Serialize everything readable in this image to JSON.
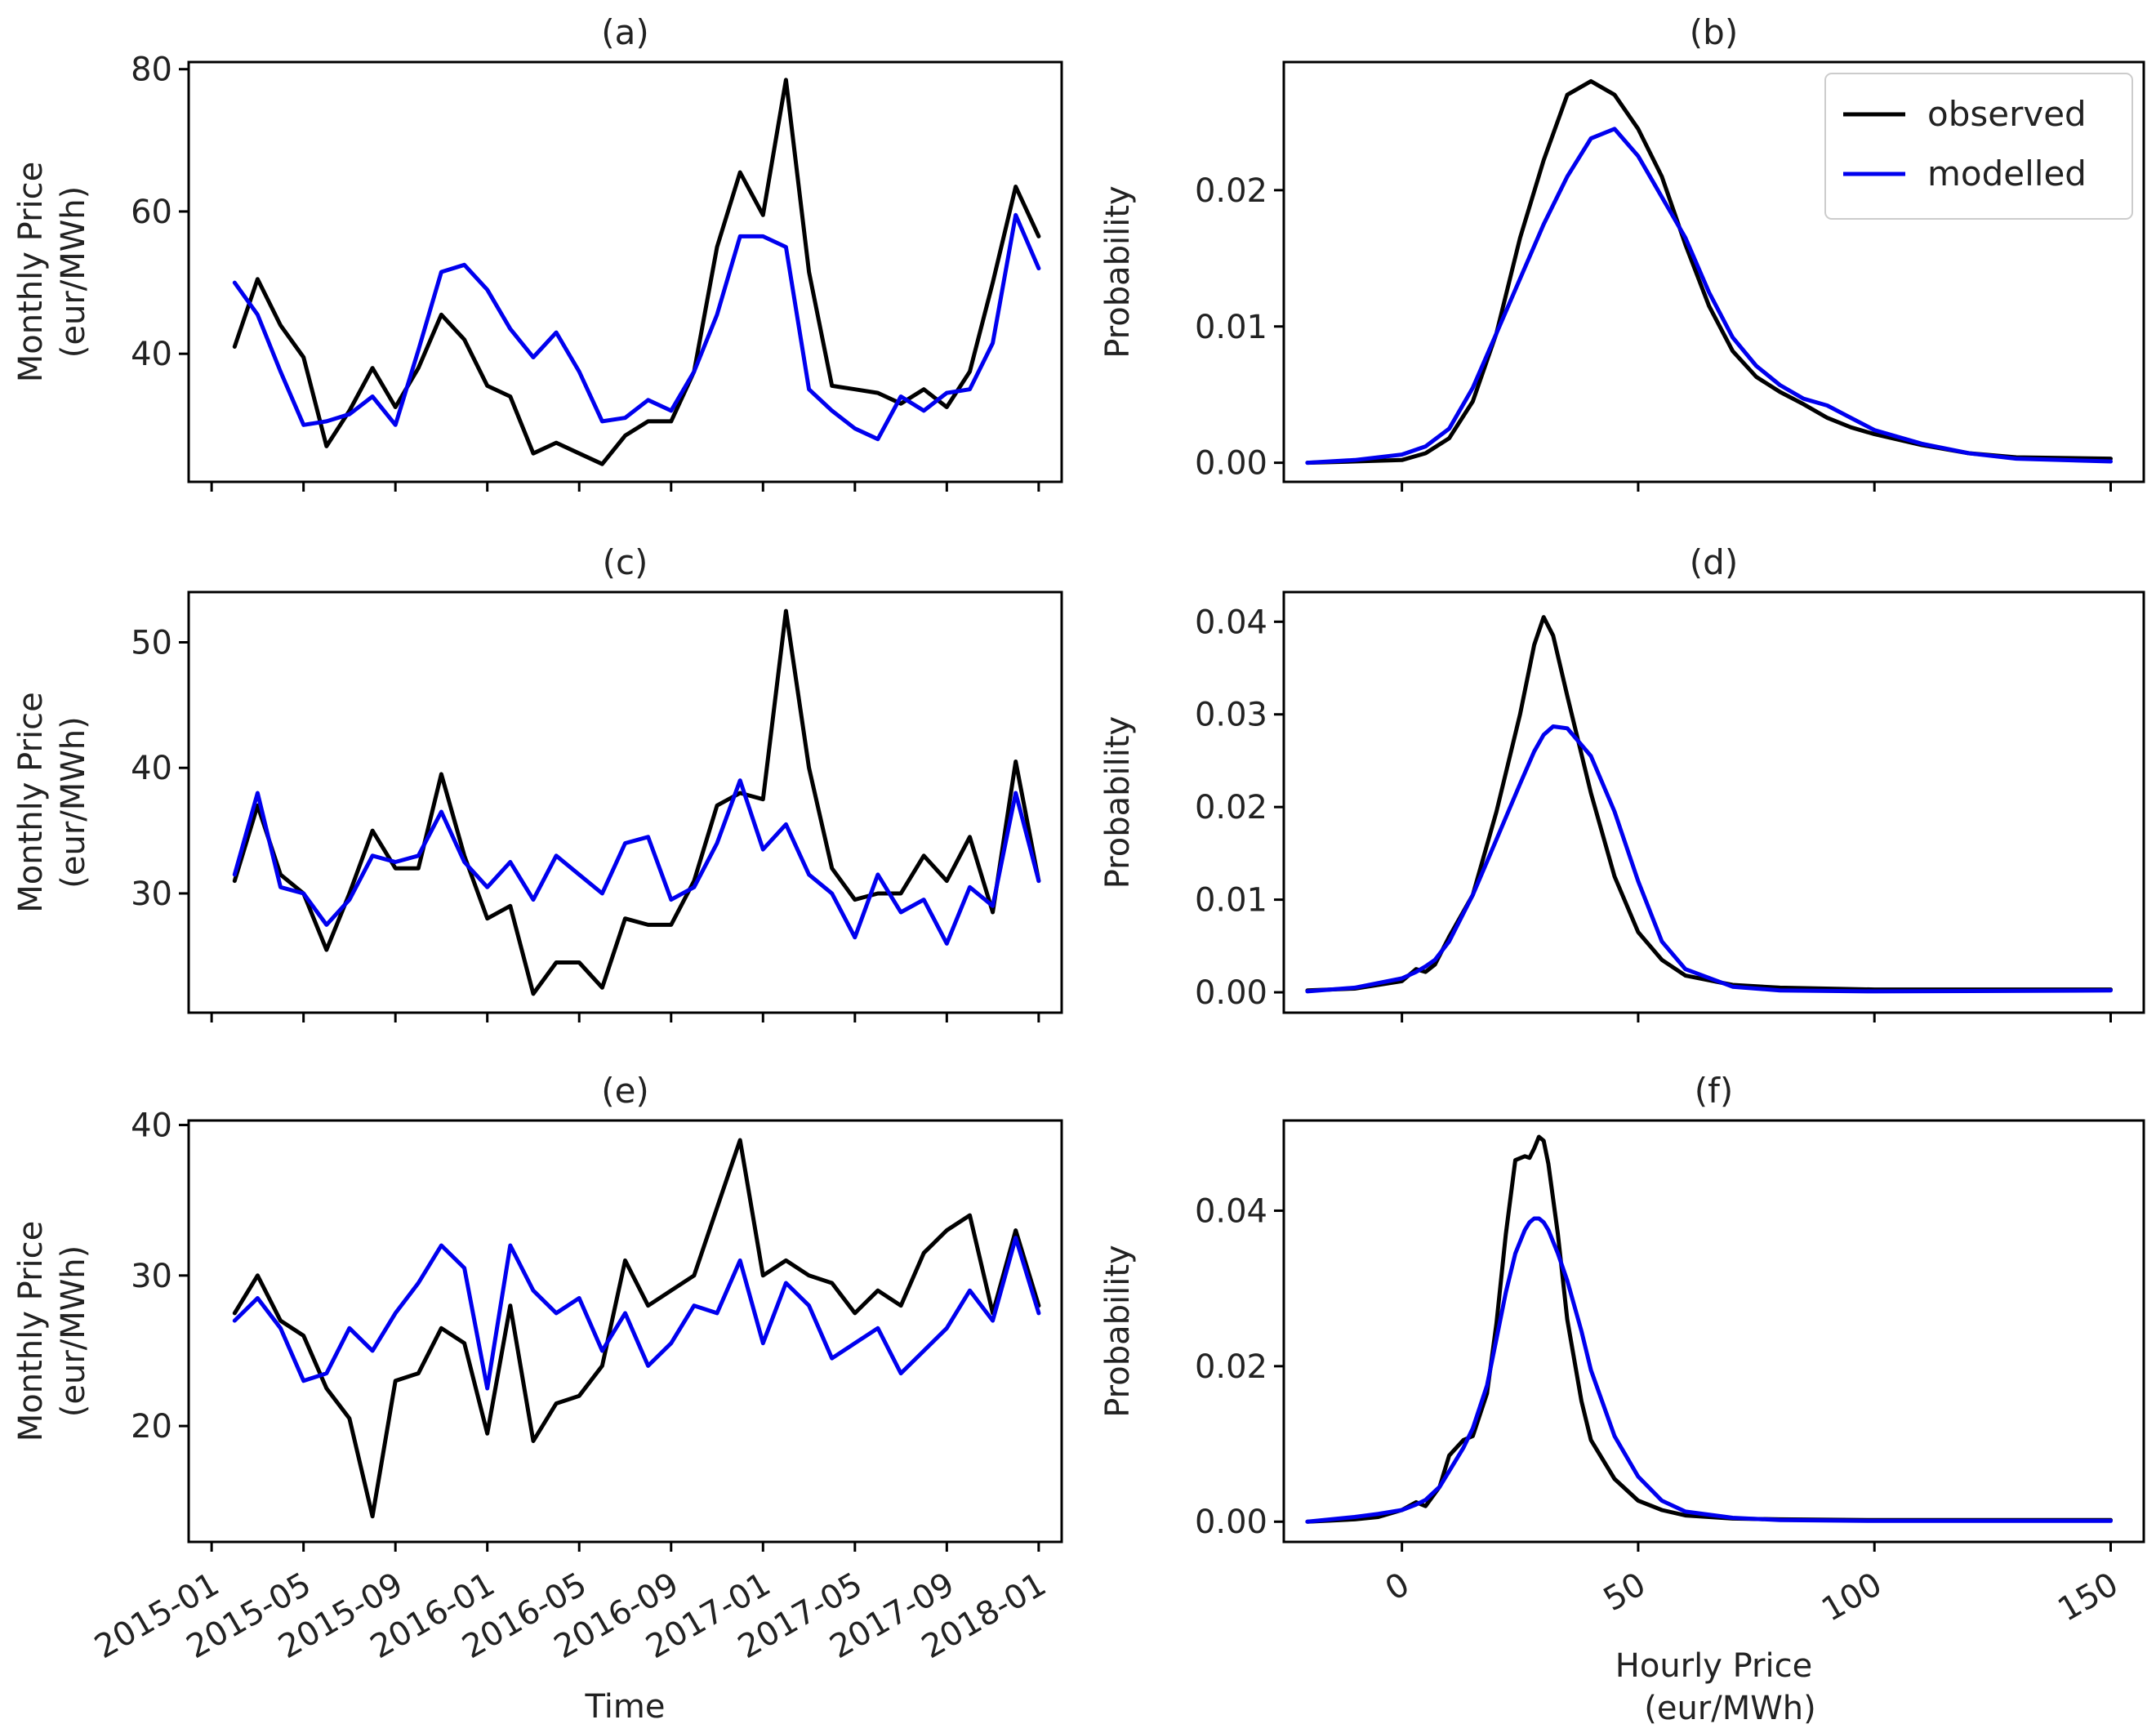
{
  "colors": {
    "observed": "#000000",
    "modelled": "#0000ee"
  },
  "legend": {
    "placement": "top-right",
    "entries": [
      "observed",
      "modelled"
    ]
  },
  "chart_data": [
    {
      "id": "a",
      "type": "line",
      "title": "(a)",
      "xlabel": "",
      "ylabel": "Monthly Price\n(eur/MWh)",
      "xlim": [
        -1,
        37
      ],
      "ylim": [
        22,
        81
      ],
      "xticks": [
        0,
        4,
        8,
        12,
        16,
        20,
        24,
        28,
        32,
        36
      ],
      "xtick_labels": [],
      "yticks": [
        40,
        60,
        80
      ],
      "ytick_labels": [
        "40",
        "60",
        "80"
      ],
      "x": [
        1,
        2,
        3,
        4,
        5,
        6,
        7,
        8,
        9,
        10,
        11,
        12,
        13,
        14,
        15,
        16,
        17,
        18,
        19,
        20,
        21,
        22,
        23,
        24,
        25,
        26,
        27,
        28,
        29,
        30,
        31,
        32,
        33,
        34,
        35,
        36
      ],
      "series": [
        {
          "name": "observed",
          "values": [
            41,
            50.5,
            44,
            39.5,
            27,
            32,
            38,
            32.5,
            38,
            45.5,
            42,
            35.5,
            34,
            26,
            27.5,
            26,
            24.5,
            28.5,
            30.5,
            30.5,
            37.5,
            55,
            65.5,
            59.5,
            78.5,
            51.5,
            35.5,
            35,
            34.5,
            33,
            35,
            32.5,
            37.5,
            50,
            63.5,
            56.5
          ]
        },
        {
          "name": "modelled",
          "values": [
            50,
            45.5,
            37.5,
            30,
            30.5,
            31.5,
            34,
            30,
            40.5,
            51.5,
            52.5,
            49,
            43.5,
            39.5,
            43,
            37.5,
            30.5,
            31,
            33.5,
            32,
            37.5,
            45.5,
            56.5,
            56.5,
            55,
            35,
            32,
            29.5,
            28,
            34,
            32,
            34.5,
            35,
            41.5,
            59.5,
            52
          ]
        }
      ]
    },
    {
      "id": "b",
      "type": "line",
      "title": "(b)",
      "xlabel": "",
      "ylabel": "Probability",
      "xlim": [
        -25,
        157
      ],
      "ylim": [
        -0.0014,
        0.0294
      ],
      "xticks": [
        0,
        50,
        100,
        150
      ],
      "xtick_labels": [],
      "yticks": [
        0,
        0.01,
        0.02
      ],
      "ytick_labels": [
        "0.00",
        "0.01",
        "0.02"
      ],
      "x": [
        -20,
        -10,
        0,
        5,
        10,
        15,
        20,
        25,
        30,
        35,
        40,
        45,
        50,
        55,
        60,
        65,
        70,
        75,
        80,
        85,
        90,
        95,
        100,
        110,
        120,
        130,
        150
      ],
      "series": [
        {
          "name": "observed",
          "values": [
            0,
            0.0001,
            0.0002,
            0.0007,
            0.0018,
            0.0045,
            0.0095,
            0.0165,
            0.0222,
            0.027,
            0.028,
            0.027,
            0.0245,
            0.021,
            0.016,
            0.0115,
            0.0082,
            0.0063,
            0.0052,
            0.0043,
            0.0033,
            0.0026,
            0.0021,
            0.0013,
            0.0007,
            0.0004,
            0.0003
          ]
        },
        {
          "name": "modelled",
          "values": [
            0,
            0.0002,
            0.0006,
            0.0012,
            0.0025,
            0.0055,
            0.0095,
            0.0135,
            0.0175,
            0.021,
            0.0238,
            0.0245,
            0.0225,
            0.0195,
            0.0165,
            0.0125,
            0.0092,
            0.0071,
            0.0057,
            0.0047,
            0.0042,
            0.0033,
            0.0024,
            0.0014,
            0.0007,
            0.0003,
            0.0001
          ]
        }
      ],
      "legend": true
    },
    {
      "id": "c",
      "type": "line",
      "title": "(c)",
      "xlabel": "",
      "ylabel": "Monthly Price\n(eur/MWh)",
      "xlim": [
        -1,
        37
      ],
      "ylim": [
        20.5,
        54
      ],
      "xticks": [
        0,
        4,
        8,
        12,
        16,
        20,
        24,
        28,
        32,
        36
      ],
      "xtick_labels": [],
      "yticks": [
        30,
        40,
        50
      ],
      "ytick_labels": [
        "30",
        "40",
        "50"
      ],
      "x": [
        1,
        2,
        3,
        4,
        5,
        6,
        7,
        8,
        9,
        10,
        11,
        12,
        13,
        14,
        15,
        16,
        17,
        18,
        19,
        20,
        21,
        22,
        23,
        24,
        25,
        26,
        27,
        28,
        29,
        30,
        31,
        32,
        33,
        34,
        35,
        36
      ],
      "series": [
        {
          "name": "observed",
          "values": [
            31,
            37,
            31.5,
            30,
            25.5,
            30,
            35,
            32,
            32,
            39.5,
            33,
            28,
            29,
            22,
            24.5,
            24.5,
            22.5,
            28,
            27.5,
            27.5,
            31,
            37,
            38,
            37.5,
            52.5,
            40,
            32,
            29.5,
            30,
            30,
            33,
            31,
            34.5,
            28.5,
            40.5,
            31
          ]
        },
        {
          "name": "modelled",
          "values": [
            31.5,
            38,
            30.5,
            30,
            27.5,
            29.5,
            33,
            32.5,
            33,
            36.5,
            32.5,
            30.5,
            32.5,
            29.5,
            33,
            31.5,
            30,
            34,
            34.5,
            29.5,
            30.5,
            34,
            39,
            33.5,
            35.5,
            31.5,
            30,
            26.5,
            31.5,
            28.5,
            29.5,
            26,
            30.5,
            29,
            38,
            31
          ]
        }
      ]
    },
    {
      "id": "d",
      "type": "line",
      "title": "(d)",
      "xlabel": "",
      "ylabel": "Probability",
      "xlim": [
        -25,
        157
      ],
      "ylim": [
        -0.0022,
        0.0432
      ],
      "xticks": [
        0,
        50,
        100,
        150
      ],
      "xtick_labels": [],
      "yticks": [
        0,
        0.01,
        0.02,
        0.03,
        0.04
      ],
      "ytick_labels": [
        "0.00",
        "0.01",
        "0.02",
        "0.03",
        "0.04"
      ],
      "x": [
        -20,
        -10,
        0,
        3,
        5,
        7,
        10,
        15,
        20,
        25,
        28,
        30,
        32,
        35,
        40,
        45,
        50,
        55,
        60,
        70,
        80,
        100,
        150
      ],
      "series": [
        {
          "name": "observed",
          "values": [
            0.0002,
            0.0004,
            0.0012,
            0.0025,
            0.0022,
            0.003,
            0.006,
            0.0105,
            0.0195,
            0.03,
            0.0375,
            0.0405,
            0.0385,
            0.032,
            0.0215,
            0.0125,
            0.0065,
            0.0035,
            0.0018,
            0.0008,
            0.0005,
            0.0003,
            0.0003
          ]
        },
        {
          "name": "modelled",
          "values": [
            0.0001,
            0.0005,
            0.0015,
            0.0022,
            0.0028,
            0.0035,
            0.0055,
            0.0105,
            0.0165,
            0.0225,
            0.026,
            0.0278,
            0.0287,
            0.0285,
            0.0255,
            0.0195,
            0.012,
            0.0055,
            0.0025,
            0.0006,
            0.0002,
            0.0001,
            0.0002
          ]
        }
      ]
    },
    {
      "id": "e",
      "type": "line",
      "title": "(e)",
      "xlabel": "Time",
      "ylabel": "Monthly Price\n(eur/MWh)",
      "xlim": [
        -1,
        37
      ],
      "ylim": [
        12.3,
        40.3
      ],
      "xticks": [
        0,
        4,
        8,
        12,
        16,
        20,
        24,
        28,
        32,
        36
      ],
      "xtick_labels": [
        "2015-01",
        "2015-05",
        "2015-09",
        "2016-01",
        "2016-05",
        "2016-09",
        "2017-01",
        "2017-05",
        "2017-09",
        "2018-01"
      ],
      "yticks": [
        20,
        30,
        40
      ],
      "ytick_labels": [
        "20",
        "30",
        "40"
      ],
      "x": [
        1,
        2,
        3,
        4,
        5,
        6,
        7,
        8,
        9,
        10,
        11,
        12,
        13,
        14,
        15,
        16,
        17,
        18,
        19,
        20,
        21,
        22,
        23,
        24,
        25,
        26,
        27,
        28,
        29,
        30,
        31,
        32,
        33,
        34,
        35,
        36
      ],
      "series": [
        {
          "name": "observed",
          "values": [
            27.5,
            30,
            27,
            26,
            22.5,
            20.5,
            14,
            23,
            23.5,
            26.5,
            25.5,
            19.5,
            28,
            19,
            21.5,
            22,
            24,
            31,
            28,
            29,
            30,
            34.5,
            39,
            30,
            31,
            30,
            29.5,
            27.5,
            29,
            28,
            31.5,
            33,
            34,
            27.5,
            33,
            28
          ]
        },
        {
          "name": "modelled",
          "values": [
            27,
            28.5,
            26.5,
            23,
            23.5,
            26.5,
            25,
            27.5,
            29.5,
            32,
            30.5,
            22.5,
            32,
            29,
            27.5,
            28.5,
            25,
            27.5,
            24,
            25.5,
            28,
            27.5,
            31,
            25.5,
            29.5,
            28,
            24.5,
            25.5,
            26.5,
            23.5,
            25,
            26.5,
            29,
            27,
            32.5,
            27.5
          ]
        }
      ]
    },
    {
      "id": "f",
      "type": "line",
      "title": "(f)",
      "xlabel": "Hourly Price\n(eur/MWh)",
      "ylabel": "Probability",
      "xlim": [
        -25,
        157
      ],
      "ylim": [
        -0.0026,
        0.0516
      ],
      "xticks": [
        0,
        50,
        100,
        150
      ],
      "xtick_labels": [
        "0",
        "50",
        "100",
        "150"
      ],
      "yticks": [
        0,
        0.02,
        0.04
      ],
      "ytick_labels": [
        "0.00",
        "0.02",
        "0.04"
      ],
      "x": [
        -20,
        -10,
        -5,
        0,
        3,
        5,
        8,
        10,
        13,
        15,
        18,
        20,
        22,
        24,
        26,
        27,
        28,
        29,
        30,
        31,
        33,
        35,
        38,
        40,
        45,
        50,
        55,
        60,
        70,
        80,
        100,
        150
      ],
      "series": [
        {
          "name": "observed",
          "values": [
            0,
            0.0003,
            0.0006,
            0.0015,
            0.0025,
            0.002,
            0.0045,
            0.0085,
            0.0105,
            0.011,
            0.0165,
            0.0255,
            0.037,
            0.0465,
            0.047,
            0.0468,
            0.048,
            0.0495,
            0.049,
            0.046,
            0.037,
            0.026,
            0.0155,
            0.0105,
            0.0055,
            0.0027,
            0.0015,
            0.0008,
            0.0004,
            0.0003,
            0.0002,
            0.0002
          ]
        },
        {
          "name": "modelled",
          "values": [
            0,
            0.0006,
            0.001,
            0.0015,
            0.0022,
            0.0028,
            0.0045,
            0.0065,
            0.0095,
            0.012,
            0.0175,
            0.0235,
            0.0295,
            0.0345,
            0.0375,
            0.0385,
            0.039,
            0.039,
            0.0385,
            0.0375,
            0.0345,
            0.031,
            0.0245,
            0.0195,
            0.011,
            0.0058,
            0.0027,
            0.0013,
            0.0005,
            0.0002,
            0.0001,
            0.0001
          ]
        }
      ]
    }
  ]
}
